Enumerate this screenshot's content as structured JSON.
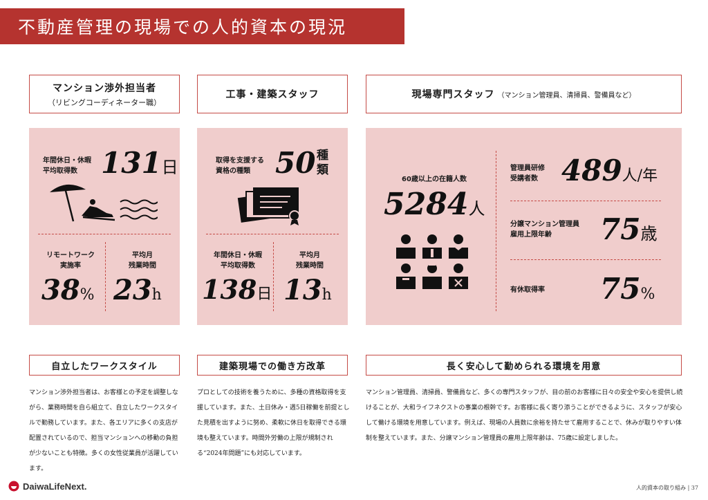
{
  "page_title": "不動産管理の現場での人的資本の現況",
  "columns": {
    "c1": {
      "header_line1": "マンション渉外担当者",
      "header_line2": "（リビングコーディネーター職）",
      "stat1_label": "年間休日・休暇\n平均取得数",
      "stat1_value": "131",
      "stat1_unit": "日",
      "stat2_label": "リモートワーク\n実施率",
      "stat2_value": "38",
      "stat2_unit": "%",
      "stat3_label": "平均月\n残業時間",
      "stat3_value": "23",
      "stat3_unit": "h",
      "section_title": "自立したワークスタイル",
      "body": "マンション渉外担当者は、お客様との予定を調整しながら、業務時間を自ら組立て、自立したワークスタイルで勤務しています。また、各エリアに多くの支店が配置されているので、担当マンションへの移動の負担が少ないことも特徴。多くの女性従業員が活躍しています。"
    },
    "c2": {
      "header": "工事・建築スタッフ",
      "stat1_label": "取得を支援する\n資格の種類",
      "stat1_value": "50",
      "stat1_unit": "種類",
      "stat2_label": "年間休日・休暇\n平均取得数",
      "stat2_value": "138",
      "stat2_unit": "日",
      "stat3_label": "平均月\n残業時間",
      "stat3_value": "13",
      "stat3_unit": "h",
      "section_title": "建築現場での働き方改革",
      "body": "プロとしての技術を養うために、多種の資格取得を支援しています。また、土日休み・週5日稼働を前提とした見積を出すように努め、柔軟に休日を取得できる環境も整えています。時間外労働の上限が規制される“2024年問題”にも対応しています。"
    },
    "c3": {
      "header": "現場専門スタッフ",
      "header_sub": "（マンション管理員、清掃員、警備員など）",
      "stat1_label": "60歳以上の在籍人数",
      "stat1_value": "5284",
      "stat1_unit": "人",
      "stat2_label": "管理員研修\n受講者数",
      "stat2_value": "489",
      "stat2_unit": "人/年",
      "stat3_label": "分譲マンション管理員\n雇用上限年齢",
      "stat3_value": "75",
      "stat3_unit": "歳",
      "stat4_label": "有休取得率",
      "stat4_value": "75",
      "stat4_unit": "%",
      "section_title": "長く安心して勤められる環境を用意",
      "body": "マンション管理員、清掃員、警備員など、多くの専門スタッフが、目の前のお客様に日々の安全や安心を提供し続けることが、大和ライフネクストの事業の根幹です。お客様に長く寄り添うことができるように、スタッフが安心して働ける環境を用意しています。例えば、現場の人員数に余裕を持たせて雇用することで、休みが取りやすい体制を整えています。また、分譲マンション管理員の雇用上限年齢は、75歳に設定しました。"
    }
  },
  "logo_text": "DaiwaLifeNext.",
  "footer": "人的資本の取り組み | 37",
  "colors": {
    "accent": "#b5332f",
    "panel": "#f0cdcc",
    "border": "#c44a45"
  },
  "icons": [
    "beach-umbrella-icon",
    "certificate-icon",
    "staff-group-icon"
  ]
}
